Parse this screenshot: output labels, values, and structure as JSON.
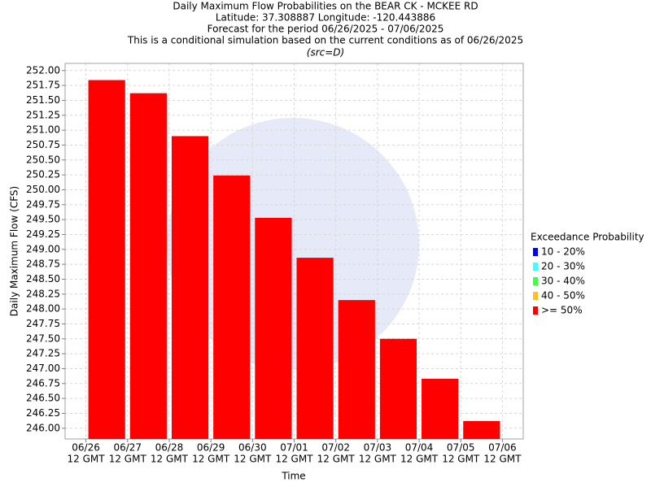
{
  "chart_data": {
    "type": "bar",
    "title": [
      "Daily Maximum Flow Probabilities on the BEAR CK - MCKEE RD",
      "Latitude: 37.308887 Longitude: -120.443886",
      "Forecast for the period 06/26/2025 - 07/06/2025",
      "This is a conditional simulation based on the current conditions as of 06/26/2025"
    ],
    "subtitle": "(src=D)",
    "y_label": "Daily Maximum Flow (CFS)",
    "x_label": "Time",
    "legend_title": "Exceedance Probability",
    "legend": "right",
    "grid": true,
    "xlim": [
      -0.5,
      10.5
    ],
    "xticks": [
      {
        "value": 0,
        "label": [
          "06/26",
          "12 GMT"
        ]
      },
      {
        "value": 1,
        "label": [
          "06/27",
          "12 GMT"
        ]
      },
      {
        "value": 2,
        "label": [
          "06/28",
          "12 GMT"
        ]
      },
      {
        "value": 3,
        "label": [
          "06/29",
          "12 GMT"
        ]
      },
      {
        "value": 4,
        "label": [
          "06/30",
          "12 GMT"
        ]
      },
      {
        "value": 5,
        "label": [
          "07/01",
          "12 GMT"
        ]
      },
      {
        "value": 6,
        "label": [
          "07/02",
          "12 GMT"
        ]
      },
      {
        "value": 7,
        "label": [
          "07/03",
          "12 GMT"
        ]
      },
      {
        "value": 8,
        "label": [
          "07/04",
          "12 GMT"
        ]
      },
      {
        "value": 9,
        "label": [
          "07/05",
          "12 GMT"
        ]
      },
      {
        "value": 10,
        "label": [
          "07/06",
          "12 GMT"
        ]
      }
    ],
    "ylim": [
      245.82,
      252.12
    ],
    "yticks": [
      {
        "value": 246.0,
        "label": "246.00"
      },
      {
        "value": 246.25,
        "label": "246.25"
      },
      {
        "value": 246.5,
        "label": "246.50"
      },
      {
        "value": 246.75,
        "label": "246.75"
      },
      {
        "value": 247.0,
        "label": "247.00"
      },
      {
        "value": 247.25,
        "label": "247.25"
      },
      {
        "value": 247.5,
        "label": "247.50"
      },
      {
        "value": 247.75,
        "label": "247.75"
      },
      {
        "value": 248.0,
        "label": "248.00"
      },
      {
        "value": 248.25,
        "label": "248.25"
      },
      {
        "value": 248.5,
        "label": "248.50"
      },
      {
        "value": 248.75,
        "label": "248.75"
      },
      {
        "value": 249.0,
        "label": "249.00"
      },
      {
        "value": 249.25,
        "label": "249.25"
      },
      {
        "value": 249.5,
        "label": "249.50"
      },
      {
        "value": 249.75,
        "label": "249.75"
      },
      {
        "value": 250.0,
        "label": "250.00"
      },
      {
        "value": 250.25,
        "label": "250.25"
      },
      {
        "value": 250.5,
        "label": "250.50"
      },
      {
        "value": 250.75,
        "label": "250.75"
      },
      {
        "value": 251.0,
        "label": "251.00"
      },
      {
        "value": 251.25,
        "label": "251.25"
      },
      {
        "value": 251.5,
        "label": "251.50"
      },
      {
        "value": 251.75,
        "label": "251.75"
      },
      {
        "value": 252.0,
        "label": "252.00"
      }
    ],
    "series": [
      {
        "name": "10 - 20%",
        "color": "#0000ff",
        "values": [
          null,
          null,
          null,
          null,
          null,
          null,
          null,
          null,
          null,
          null
        ]
      },
      {
        "name": "20 - 30%",
        "color": "#40ffff",
        "values": [
          null,
          null,
          null,
          null,
          null,
          null,
          null,
          null,
          null,
          null
        ]
      },
      {
        "name": "30 - 40%",
        "color": "#40ff40",
        "values": [
          null,
          null,
          null,
          null,
          null,
          null,
          null,
          null,
          null,
          null
        ]
      },
      {
        "name": "40 - 50%",
        "color": "#ffc020",
        "values": [
          null,
          null,
          null,
          null,
          null,
          null,
          null,
          null,
          null,
          null
        ]
      },
      {
        "name": ">= 50%",
        "color": "#ff0000",
        "values": [
          251.84,
          251.62,
          250.9,
          250.24,
          249.53,
          248.86,
          248.15,
          247.5,
          246.83,
          246.12
        ]
      }
    ]
  }
}
